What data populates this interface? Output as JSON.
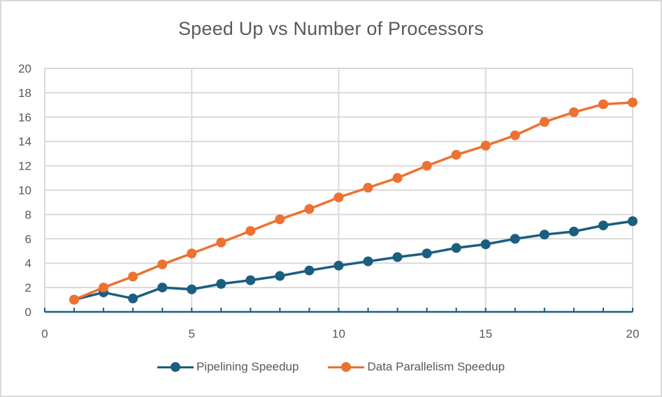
{
  "chart_data": {
    "type": "line",
    "title": "Speed Up vs Number of Processors",
    "xlabel": "",
    "ylabel": "",
    "xlim": [
      0,
      20
    ],
    "ylim": [
      0,
      20
    ],
    "x_ticks": [
      0,
      5,
      10,
      15,
      20
    ],
    "y_ticks": [
      0,
      2,
      4,
      6,
      8,
      10,
      12,
      14,
      16,
      18,
      20
    ],
    "grid": true,
    "legend_position": "bottom",
    "x": [
      1,
      2,
      3,
      4,
      5,
      6,
      7,
      8,
      9,
      10,
      11,
      12,
      13,
      14,
      15,
      16,
      17,
      18,
      19,
      20
    ],
    "series": [
      {
        "name": "Pipelining Speedup",
        "color": "#1a5e80",
        "values": [
          1.0,
          1.6,
          1.1,
          2.0,
          1.85,
          2.3,
          2.6,
          2.95,
          3.4,
          3.8,
          4.15,
          4.5,
          4.8,
          5.25,
          5.55,
          6.0,
          6.35,
          6.6,
          7.1,
          7.45
        ]
      },
      {
        "name": "Data Parallelism Speedup",
        "color": "#ed7131",
        "values": [
          1.0,
          2.0,
          2.9,
          3.9,
          4.8,
          5.7,
          6.65,
          7.6,
          8.45,
          9.4,
          10.2,
          11.0,
          12.0,
          12.9,
          13.65,
          14.5,
          15.6,
          16.4,
          17.05,
          17.2
        ]
      }
    ]
  },
  "colors": {
    "axis": "#1a5e80",
    "grid": "#d9d9d9",
    "text": "#595959",
    "border": "#d9d9d9"
  }
}
